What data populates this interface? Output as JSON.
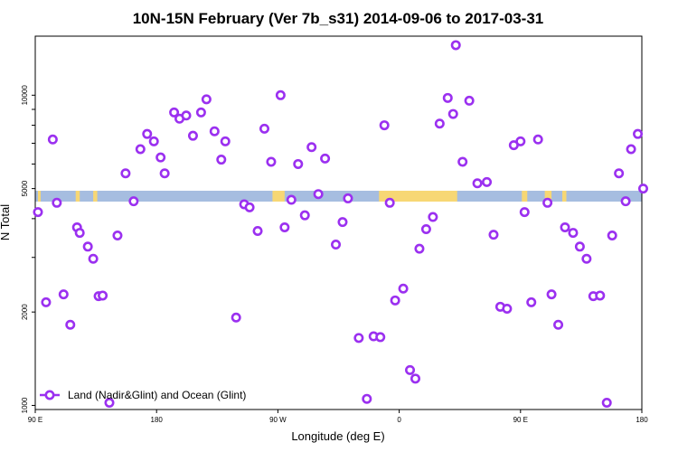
{
  "chart_data": {
    "type": "scatter",
    "title": "10N-15N February (Ver 7b_s31)   2014-09-06 to 2017-03-31",
    "xlabel": "Longitude (deg E)",
    "ylabel": "N Total",
    "x_ticks": [
      {
        "value": 90,
        "label": "90 E"
      },
      {
        "value": 180,
        "label": "180"
      },
      {
        "value": 270,
        "label": "90 W"
      },
      {
        "value": 360,
        "label": "0"
      },
      {
        "value": 450,
        "label": "90 E"
      },
      {
        "value": 540,
        "label": "180"
      }
    ],
    "y_ticks": [
      {
        "value": 1000,
        "label": "1000"
      },
      {
        "value": 2000,
        "label": "2000"
      },
      {
        "value": 5000,
        "label": "5000"
      },
      {
        "value": 10000,
        "label": "10000"
      }
    ],
    "xlim": [
      90,
      540
    ],
    "ylim": [
      970,
      15500
    ],
    "y_scale": "log",
    "grid": false,
    "legend_position": "bottom-left",
    "colors": {
      "series": "#9b30f0",
      "ocean": "#a6bde0",
      "land": "#f7d774"
    },
    "series": [
      {
        "name": "Land (Nadir&Glint) and Ocean (Glint)",
        "x": [
          92,
          98,
          103,
          106,
          111,
          116,
          121,
          123,
          129,
          133,
          137,
          140,
          145,
          151,
          157,
          163,
          168,
          173,
          178,
          183,
          186,
          193,
          197,
          202,
          207,
          213,
          217,
          223,
          228,
          231,
          239,
          245,
          249,
          255,
          260,
          265,
          272,
          275,
          280,
          285,
          290,
          295,
          300,
          305,
          313,
          318,
          322,
          330,
          336,
          341,
          346,
          349,
          353,
          357,
          363,
          368,
          372,
          375,
          380,
          385,
          390,
          396,
          400,
          402,
          407,
          412,
          418,
          425,
          430,
          435,
          440,
          445,
          450,
          453,
          458,
          463,
          470,
          473,
          478,
          483,
          489,
          494,
          499,
          504,
          509,
          514,
          518,
          523,
          528,
          532,
          537,
          541
        ],
        "y": [
          4200,
          2150,
          7200,
          4500,
          2280,
          1820,
          3750,
          3600,
          3250,
          2970,
          2250,
          2260,
          1020,
          3530,
          5600,
          4550,
          6700,
          7500,
          7100,
          6300,
          5600,
          8800,
          8400,
          8600,
          7400,
          8800,
          9700,
          7650,
          6200,
          7100,
          1920,
          4450,
          4350,
          3650,
          7800,
          6100,
          10000,
          3750,
          4600,
          6000,
          4100,
          6800,
          4800,
          6250,
          3300,
          3900,
          4650,
          1650,
          1050,
          1670,
          1660,
          8000,
          4500,
          2180,
          2380,
          1300,
          1220,
          3200,
          3700,
          4050,
          8100,
          9800,
          8700,
          14500,
          6100,
          9600,
          5200,
          5250,
          3550,
          2080,
          2050,
          6900,
          7100,
          4200,
          2150,
          7200,
          4500,
          2280,
          1820,
          3750,
          3600,
          3250,
          2970,
          2250,
          2260,
          1020,
          3530,
          5600,
          4550,
          6700,
          7500,
          5000
        ]
      }
    ]
  }
}
